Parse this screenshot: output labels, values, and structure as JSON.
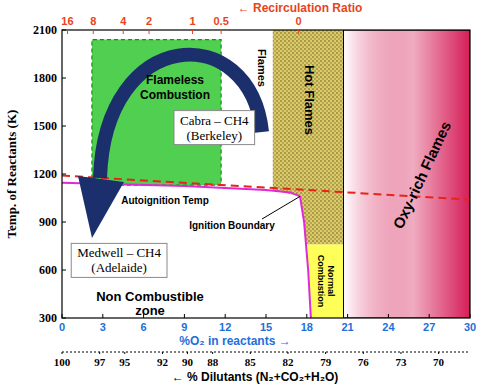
{
  "chart_data": {
    "type": "regime_map",
    "y_label": "Temp. of Reactants (K)",
    "x_label": "%O₂ in reactants →",
    "x2_label": "← % Dilutants (N₂+CO₂+H₂O)",
    "recirculation_label": "← Recirculation Ratio",
    "xlim": [
      0,
      30
    ],
    "xticks": [
      0,
      3,
      6,
      9,
      12,
      15,
      18,
      21,
      24,
      27,
      30
    ],
    "ylim": [
      300,
      2100
    ],
    "yticks": [
      300,
      600,
      900,
      1200,
      1500,
      1800,
      2100
    ],
    "x2lim": [
      100,
      67.5
    ],
    "x2ticks": [
      100,
      97,
      95,
      92,
      90,
      88,
      85,
      82,
      79,
      76,
      73,
      70
    ],
    "recirculation_ticks": [
      {
        "value": 0.4,
        "label": "16"
      },
      {
        "value": 2.3,
        "label": "8"
      },
      {
        "value": 4.5,
        "label": "4"
      },
      {
        "value": 6.4,
        "label": "2"
      },
      {
        "value": 9.6,
        "label": "1"
      },
      {
        "value": 11.7,
        "label": "0.5"
      },
      {
        "value": 17.4,
        "label": "0"
      }
    ],
    "regions": [
      {
        "label": [
          "Non Combustible",
          "zone"
        ],
        "type": "blank",
        "color": "#ffffff",
        "x": [
          0,
          18.3,
          18.1,
          17.5,
          15,
          0
        ],
        "y": [
          300,
          300,
          600,
          1060,
          1100,
          1145
        ]
      },
      {
        "label": [
          "Flames"
        ],
        "type": "blank",
        "color": "#ffffff",
        "x": [
          11.7,
          15.5,
          15.5,
          11.7
        ],
        "y": [
          1110,
          1100,
          2100,
          2100
        ]
      },
      {
        "label": [
          "Flameless",
          "Combustion"
        ],
        "type": "solid",
        "line_style": "dashed",
        "color": "#3dca3d",
        "x": [
          2.2,
          11.7,
          11.7,
          2.2
        ],
        "y": [
          1130,
          1130,
          2040,
          2040
        ]
      },
      {
        "label": [
          "Hot Flames"
        ],
        "type": "hatched",
        "color": "#dccb6a",
        "x": [
          15.5,
          20.7,
          20.7,
          17.95,
          17.8,
          17.5,
          15.5
        ],
        "y": [
          2100,
          2100,
          760,
          760,
          900,
          1060,
          1100
        ]
      },
      {
        "label": [
          "Normal",
          "Combustion"
        ],
        "type": "solid",
        "color": "#ffff5a",
        "x": [
          17.95,
          20.7,
          20.7,
          18.3,
          18.1
        ],
        "y": [
          760,
          760,
          300,
          300,
          600
        ]
      },
      {
        "label": [
          "Oxy-rich Flames"
        ],
        "type": "gradient",
        "color": "#d3124f",
        "x": [
          20.7,
          30,
          30,
          20.7
        ],
        "y": [
          300,
          300,
          2100,
          2100
        ]
      }
    ],
    "series": [
      {
        "name": "Autoignition Temp",
        "color": "#e8231a",
        "line_style": "dashed",
        "x": [
          0,
          30
        ],
        "values": [
          1190,
          1040
        ]
      },
      {
        "name": "Ignition Boundary",
        "color": "#e02ad8",
        "line_style": "solid",
        "x": [
          0,
          9,
          15,
          16.8,
          17.5,
          17.8,
          18.1,
          18.3
        ],
        "values": [
          1145,
          1125,
          1100,
          1085,
          1060,
          900,
          600,
          300
        ]
      }
    ],
    "annotations": [
      {
        "lines": [
          "Cabra – CH4",
          "(Berkeley)"
        ],
        "x": 11.2,
        "y": 1490
      },
      {
        "lines": [
          "Medwell – CH4",
          "(Adelaide)"
        ],
        "x": 4.2,
        "y": 660
      }
    ]
  }
}
